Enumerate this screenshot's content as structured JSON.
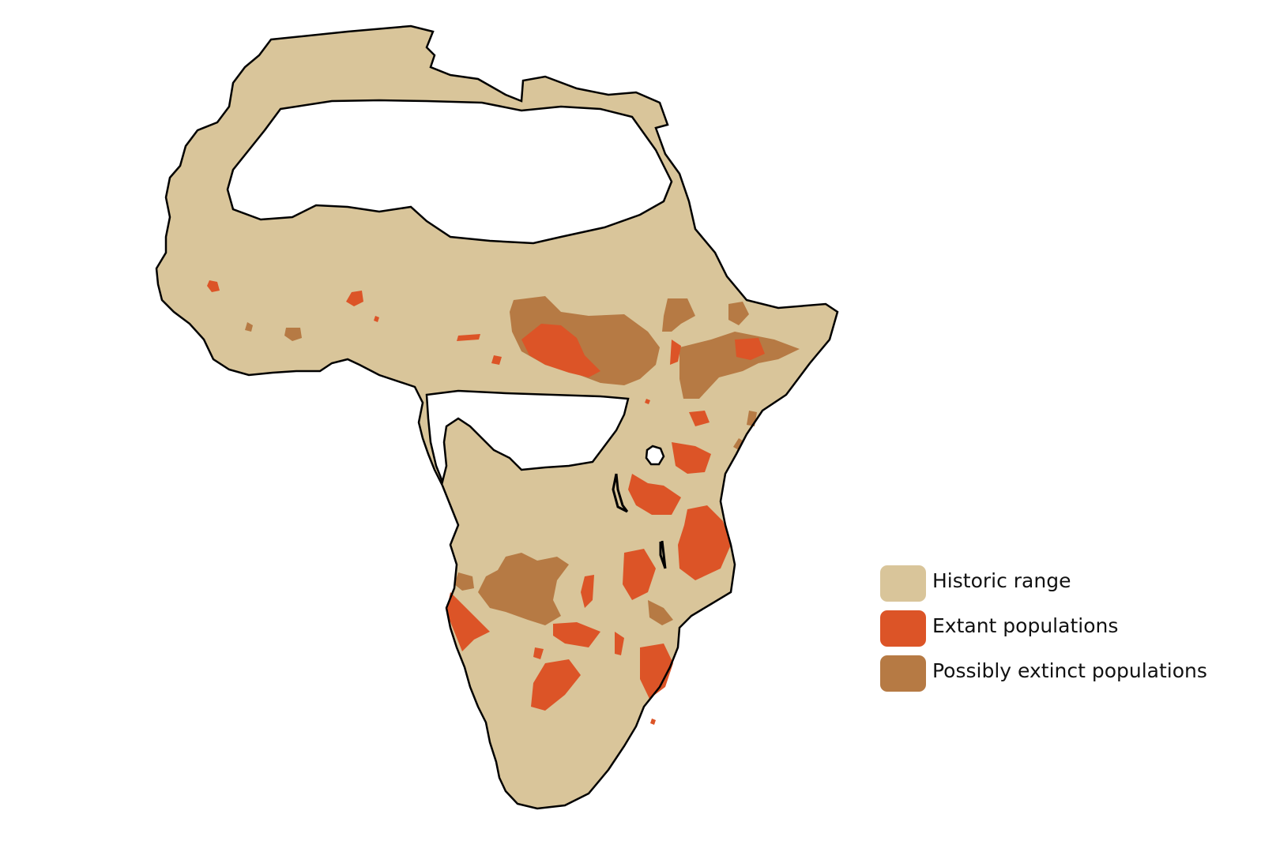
{
  "colors": {
    "historic": "#d9c59a",
    "extant": "#dc5427",
    "possibly_extinct": "#b67a44",
    "outline": "#000000",
    "background": "#ffffff"
  },
  "legend": {
    "historic_label": "Historic range",
    "extant_label": "Extant populations",
    "possibly_extinct_label": "Possibly extinct populations"
  }
}
